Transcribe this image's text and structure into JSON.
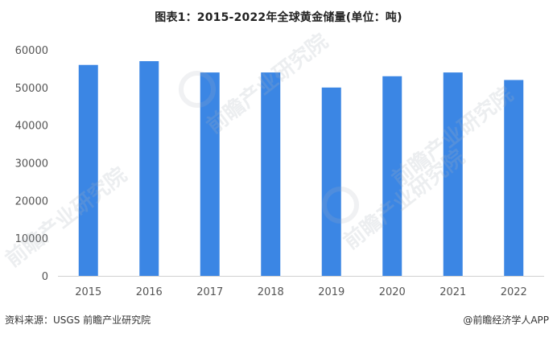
{
  "chart_data": {
    "type": "bar",
    "title": "图表1：2015-2022年全球黄金储量(单位：吨)",
    "categories": [
      "2015",
      "2016",
      "2017",
      "2018",
      "2019",
      "2020",
      "2021",
      "2022"
    ],
    "values": [
      56000,
      57000,
      54000,
      54000,
      50000,
      53000,
      54000,
      52000
    ],
    "ylim": [
      0,
      60000
    ],
    "yticks": [
      "0",
      "10000",
      "20000",
      "30000",
      "40000",
      "50000",
      "60000"
    ],
    "xlabel": "",
    "ylabel": "",
    "grid": false,
    "bar_color": "#3b86e4"
  },
  "footer": {
    "source": "资料来源：USGS 前瞻产业研究院",
    "brand": "@前瞻经济学人APP"
  },
  "watermark": {
    "text": "前瞻产业研究院"
  }
}
